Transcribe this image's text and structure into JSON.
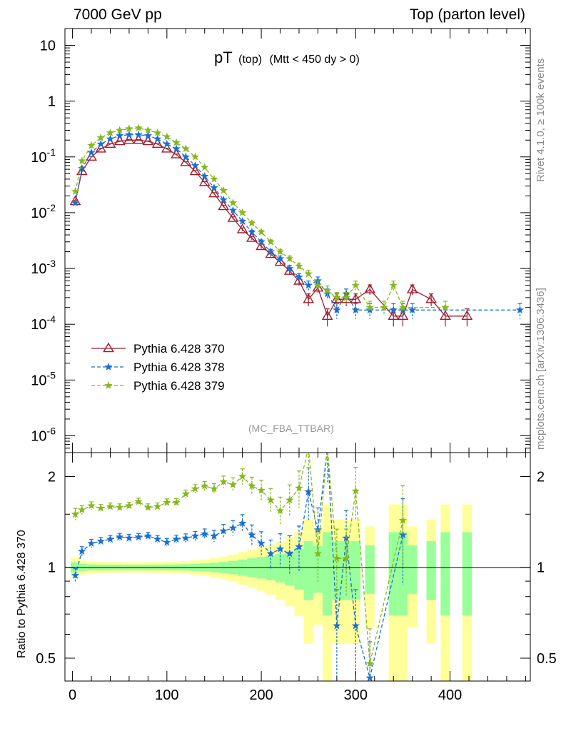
{
  "header": {
    "left": "7000 GeV pp",
    "right": "Top (parton level)"
  },
  "side": {
    "rivet": "Rivet 4.1.0, ≥ 100k events",
    "mcplots": "mcplots.cern.ch [arXiv:1306.3436]"
  },
  "plot_title": {
    "main": "pT",
    "sub1": "(top)",
    "sub2": "(Mtt < 450 dy > 0)"
  },
  "watermark": "(MC_FBA_TTBAR)",
  "colors": {
    "s370": "#a01c2c",
    "s378": "#1a6fd6",
    "s379": "#86b81e",
    "band_outer": "#ffff99",
    "band_inner": "#99ff99"
  },
  "chart_data": [
    {
      "type": "line",
      "title": "pT (top) (Mtt < 450 dy > 0)",
      "xlabel": "",
      "ylabel": "",
      "yscale": "log",
      "xlim": [
        -8,
        485
      ],
      "ylim": [
        5e-07,
        20
      ],
      "yticks": [
        "10^{-6}",
        "10^{-5}",
        "10^{-4}",
        "10^{-3}",
        "10^{-2}",
        "10^{-1}",
        "1",
        "10"
      ],
      "legend": {
        "position": "middle-left",
        "entries": [
          "Pythia 6.428 370",
          "Pythia 6.428 378",
          "Pythia 6.428 379"
        ]
      },
      "series": [
        {
          "name": "Pythia 6.428 370",
          "x": [
            3,
            10,
            20,
            30,
            40,
            50,
            60,
            70,
            80,
            90,
            100,
            110,
            120,
            130,
            140,
            150,
            160,
            170,
            180,
            190,
            200,
            210,
            220,
            230,
            240,
            250,
            260,
            270,
            280,
            290,
            300,
            315,
            340,
            350,
            360,
            380,
            395,
            418
          ],
          "y": [
            0.016,
            0.055,
            0.1,
            0.14,
            0.17,
            0.19,
            0.2,
            0.2,
            0.19,
            0.17,
            0.14,
            0.11,
            0.08,
            0.055,
            0.035,
            0.022,
            0.013,
            0.008,
            0.005,
            0.0035,
            0.0025,
            0.0018,
            0.0013,
            0.0009,
            0.0006,
            0.00028,
            0.00045,
            0.00014,
            0.00028,
            0.00028,
            0.00028,
            0.00042,
            0.00014,
            0.00014,
            0.00042,
            0.00028,
            0.00014,
            0.00014
          ]
        },
        {
          "name": "Pythia 6.428 378",
          "x": [
            3,
            10,
            20,
            30,
            40,
            50,
            60,
            70,
            80,
            90,
            100,
            110,
            120,
            130,
            140,
            150,
            160,
            170,
            180,
            190,
            200,
            210,
            220,
            230,
            240,
            250,
            260,
            270,
            280,
            290,
            300,
            315,
            340,
            350,
            360,
            474
          ],
          "y": [
            0.015,
            0.062,
            0.12,
            0.17,
            0.21,
            0.24,
            0.25,
            0.25,
            0.24,
            0.21,
            0.17,
            0.14,
            0.1,
            0.07,
            0.045,
            0.028,
            0.017,
            0.011,
            0.007,
            0.0045,
            0.003,
            0.002,
            0.0015,
            0.001,
            0.0007,
            0.0005,
            0.0006,
            0.00035,
            0.00018,
            0.00035,
            0.00018,
            0.00018,
            0.00018,
            0.00018,
            0.00018,
            0.00018
          ]
        },
        {
          "name": "Pythia 6.428 379",
          "x": [
            3,
            10,
            20,
            30,
            40,
            50,
            60,
            70,
            80,
            90,
            100,
            110,
            120,
            130,
            140,
            150,
            160,
            170,
            180,
            190,
            200,
            210,
            220,
            230,
            240,
            250,
            260,
            270,
            280,
            290,
            300,
            315,
            330,
            340,
            350,
            395
          ],
          "y": [
            0.024,
            0.085,
            0.16,
            0.22,
            0.27,
            0.3,
            0.32,
            0.33,
            0.3,
            0.27,
            0.23,
            0.18,
            0.14,
            0.1,
            0.065,
            0.04,
            0.025,
            0.015,
            0.01,
            0.0065,
            0.0045,
            0.003,
            0.002,
            0.0015,
            0.0011,
            0.0008,
            0.0005,
            0.0004,
            0.0003,
            0.0003,
            0.0005,
            0.0002,
            0.0002,
            0.0005,
            0.0002,
            0.0002
          ]
        }
      ]
    },
    {
      "type": "line",
      "title": "",
      "xlabel": "",
      "ylabel": "Ratio to Pythia 6.428 370",
      "xlim": [
        -8,
        485
      ],
      "ylim": [
        0.42,
        2.4
      ],
      "xticks": [
        "0",
        "100",
        "200",
        "300",
        "400"
      ],
      "yticks": [
        "0.5",
        "1",
        "2"
      ],
      "series": [
        {
          "name": "Pythia 6.428 378",
          "x": [
            3,
            10,
            20,
            30,
            40,
            50,
            60,
            70,
            80,
            90,
            100,
            110,
            120,
            130,
            140,
            150,
            160,
            170,
            180,
            190,
            200,
            210,
            220,
            230,
            240,
            250,
            260,
            270,
            280,
            290,
            300,
            315,
            350
          ],
          "y": [
            0.94,
            1.13,
            1.2,
            1.22,
            1.24,
            1.26,
            1.25,
            1.26,
            1.27,
            1.24,
            1.21,
            1.24,
            1.25,
            1.27,
            1.29,
            1.27,
            1.32,
            1.35,
            1.4,
            1.28,
            1.2,
            1.11,
            1.15,
            1.11,
            1.17,
            1.78,
            1.33,
            2.5,
            0.64,
            1.25,
            0.64,
            0.43,
            1.28
          ]
        },
        {
          "name": "Pythia 6.428 379",
          "x": [
            3,
            10,
            20,
            30,
            40,
            50,
            60,
            70,
            80,
            90,
            100,
            110,
            120,
            130,
            140,
            150,
            160,
            170,
            180,
            190,
            200,
            210,
            220,
            230,
            240,
            250,
            260,
            270,
            280,
            290,
            300,
            315,
            350
          ],
          "y": [
            1.5,
            1.55,
            1.6,
            1.57,
            1.59,
            1.58,
            1.6,
            1.65,
            1.58,
            1.59,
            1.64,
            1.64,
            1.75,
            1.82,
            1.86,
            1.82,
            1.92,
            1.88,
            2.0,
            1.86,
            1.8,
            1.67,
            1.54,
            1.67,
            1.83,
            2.86,
            1.11,
            2.86,
            1.07,
            1.07,
            1.79,
            0.48,
            1.43
          ]
        }
      ]
    }
  ]
}
